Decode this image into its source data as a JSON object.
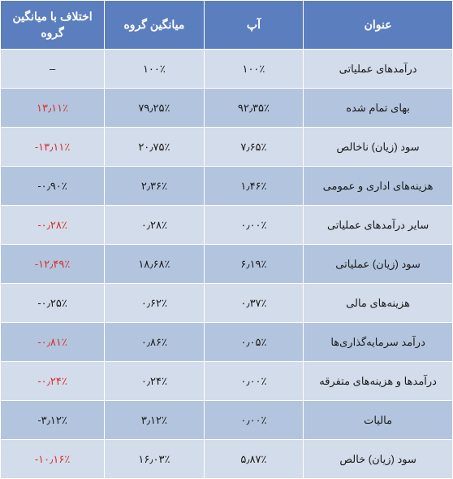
{
  "table": {
    "headers": {
      "title": "عنوان",
      "ap": "آپ",
      "group_avg": "میانگین گروه",
      "diff": "اختلاف با میانگین گروه"
    },
    "rows": [
      {
        "title": "درآمدهای عملیاتی",
        "ap": "١٠٠٪",
        "avg": "١٠٠٪",
        "diff": "–",
        "neg": false
      },
      {
        "title": "بهای تمام شده",
        "ap": "٩٢٫٣۵٪",
        "avg": "٧٩٫٢۵٪",
        "diff": "١٣٫١١٪",
        "neg": true
      },
      {
        "title": "سود (زیان) ناخالص",
        "ap": "٧٫۶۵٪",
        "avg": "٢٠٫٧۵٪",
        "diff": "-١٣٫١١٪",
        "neg": true
      },
      {
        "title": "هزینه‌های اداری و عمومی",
        "ap": "١٫۴۶٪",
        "avg": "٢٫٣۶٪",
        "diff": "-٠٫٩٠٪",
        "neg": false
      },
      {
        "title": "سایر درآمدهای عملیاتی",
        "ap": "٠٫٠٠٪",
        "avg": "٠٫٢٨٪",
        "diff": "-٠٫٢٨٪",
        "neg": true
      },
      {
        "title": "سود (زیان) عملیاتی",
        "ap": "۶٫١٩٪",
        "avg": "١٨٫۶٨٪",
        "diff": "-١٢٫۴٩٪",
        "neg": true
      },
      {
        "title": "هزینه‌های مالی",
        "ap": "٠٫٣٧٪",
        "avg": "٠٫۶٢٪",
        "diff": "-٠٫٢۵٪",
        "neg": false
      },
      {
        "title": "درآمد سرمایه‌گذاری‌ها",
        "ap": "٠٫٠۵٪",
        "avg": "٠٫٨۶٪",
        "diff": "-٠٫٨١٪",
        "neg": true
      },
      {
        "title": "درآمدها و هزینه‌های متفرقه",
        "ap": "٠٫٠٠٪",
        "avg": "٠٫٢۴٪",
        "diff": "-٠٫٢۴٪",
        "neg": true
      },
      {
        "title": "مالیات",
        "ap": "٠٫٠٠٪",
        "avg": "٣٫١٢٪",
        "diff": "-٣٫١٢٪",
        "neg": false
      },
      {
        "title": "سود (زیان) خالص",
        "ap": "۵٫٨٧٪",
        "avg": "١۶٫٠٣٪",
        "diff": "-١٠٫١۶٪",
        "neg": true
      }
    ]
  },
  "colors": {
    "header_bg": "#5b7ebf",
    "header_fg": "#ffffff",
    "row_odd": "#d3dcea",
    "row_even": "#b3c5de",
    "neg": "#d92e2e",
    "text": "#1a1a1a"
  }
}
